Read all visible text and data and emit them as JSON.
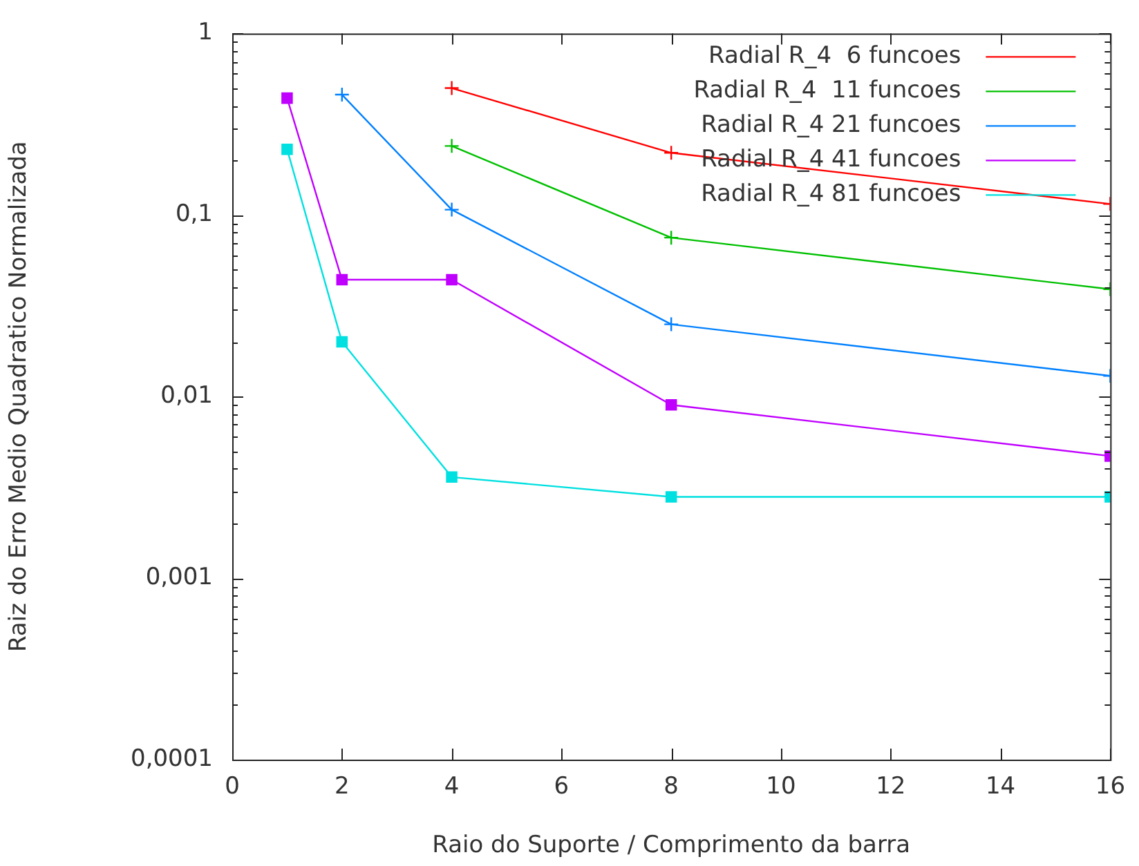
{
  "chart_data": {
    "type": "line",
    "xlabel": "Raio do Suporte / Comprimento da barra",
    "ylabel": "Raiz do Erro Medio Quadratico Normalizada",
    "x": [
      1,
      2,
      4,
      8,
      16
    ],
    "series": [
      {
        "name": "Radial R_4  6 funcoes",
        "color": "#ff0000",
        "marker": "cross",
        "values": [
          null,
          null,
          0.5,
          0.22,
          0.115
        ]
      },
      {
        "name": "Radial R_4  11 funcoes",
        "color": "#00c000",
        "marker": "cross",
        "values": [
          null,
          null,
          0.24,
          0.075,
          0.039
        ]
      },
      {
        "name": "Radial R_4 21 funcoes",
        "color": "#0080ff",
        "marker": "cross",
        "values": [
          null,
          0.46,
          0.107,
          0.025,
          0.013
        ]
      },
      {
        "name": "Radial R_4 41 funcoes",
        "color": "#c000ff",
        "marker": "square",
        "values": [
          0.44,
          0.044,
          0.044,
          0.009,
          0.0047
        ]
      },
      {
        "name": "Radial R_4 81 funcoes",
        "color": "#00e0e0",
        "marker": "square",
        "values": [
          0.23,
          0.02,
          0.0036,
          0.0028,
          0.0028
        ]
      }
    ],
    "log": "y",
    "xlim": [
      0,
      16
    ],
    "xticks": [
      0,
      2,
      4,
      6,
      8,
      10,
      12,
      14,
      16
    ],
    "ylim": [
      0.0001,
      1
    ],
    "yticks": [
      {
        "value": 0.0001,
        "label": "0,0001"
      },
      {
        "value": 0.0002,
        "label": null
      },
      {
        "value": 0.0003,
        "label": null
      },
      {
        "value": 0.0004,
        "label": null
      },
      {
        "value": 0.0005,
        "label": null
      },
      {
        "value": 0.0006,
        "label": null
      },
      {
        "value": 0.0007,
        "label": null
      },
      {
        "value": 0.0008,
        "label": null
      },
      {
        "value": 0.0009,
        "label": null
      },
      {
        "value": 0.001,
        "label": "0,001"
      },
      {
        "value": 0.002,
        "label": null
      },
      {
        "value": 0.003,
        "label": null
      },
      {
        "value": 0.004,
        "label": null
      },
      {
        "value": 0.005,
        "label": null
      },
      {
        "value": 0.006,
        "label": null
      },
      {
        "value": 0.007,
        "label": null
      },
      {
        "value": 0.008,
        "label": null
      },
      {
        "value": 0.009,
        "label": null
      },
      {
        "value": 0.01,
        "label": "0,01"
      },
      {
        "value": 0.02,
        "label": null
      },
      {
        "value": 0.03,
        "label": null
      },
      {
        "value": 0.04,
        "label": null
      },
      {
        "value": 0.05,
        "label": null
      },
      {
        "value": 0.06,
        "label": null
      },
      {
        "value": 0.07,
        "label": null
      },
      {
        "value": 0.08,
        "label": null
      },
      {
        "value": 0.09,
        "label": null
      },
      {
        "value": 0.1,
        "label": "0,1"
      },
      {
        "value": 0.2,
        "label": null
      },
      {
        "value": 0.3,
        "label": null
      },
      {
        "value": 0.4,
        "label": null
      },
      {
        "value": 0.5,
        "label": null
      },
      {
        "value": 0.6,
        "label": null
      },
      {
        "value": 0.7,
        "label": null
      },
      {
        "value": 0.8,
        "label": null
      },
      {
        "value": 0.9,
        "label": null
      },
      {
        "value": 1,
        "label": "1"
      }
    ],
    "grid": false,
    "legend": "top right"
  }
}
